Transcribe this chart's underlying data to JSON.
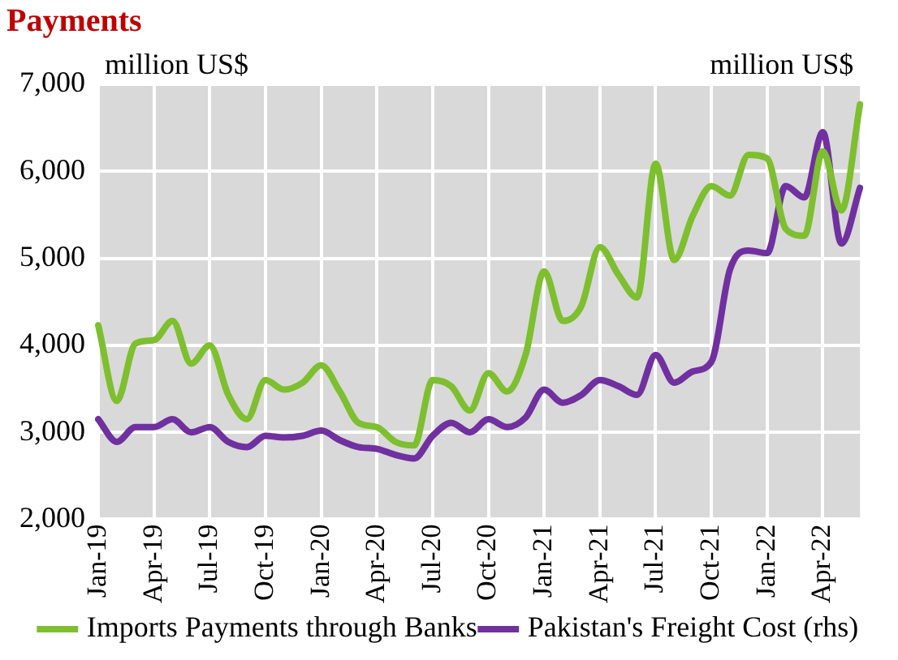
{
  "chart_data": {
    "type": "line",
    "title": "Payments",
    "ylabel": "million US$",
    "y2label": "million US$",
    "categories": [
      "Jan-19",
      null,
      null,
      "Apr-19",
      null,
      null,
      "Jul-19",
      null,
      null,
      "Oct-19",
      null,
      null,
      "Jan-20",
      null,
      null,
      "Apr-20",
      null,
      null,
      "Jul-20",
      null,
      null,
      "Oct-20",
      null,
      null,
      "Jan-21",
      null,
      null,
      "Apr-21",
      null,
      null,
      "Jul-21",
      null,
      null,
      "Oct-21",
      null,
      null,
      "Jan-22",
      null,
      null,
      "Apr-22",
      null,
      null
    ],
    "series": [
      {
        "name": "Imports Payments through Banks",
        "color": "#7dbf2e",
        "values": [
          4230,
          3360,
          4020,
          4060,
          4280,
          3790,
          4000,
          3430,
          3150,
          3600,
          3490,
          3570,
          3770,
          3470,
          3110,
          3060,
          2890,
          2850,
          3600,
          3530,
          3250,
          3680,
          3470,
          3890,
          4850,
          4280,
          4450,
          5130,
          4810,
          4550,
          6090,
          4980,
          5490,
          5830,
          5720,
          6190,
          6150,
          5340,
          5260,
          6230,
          5550,
          6770
        ]
      },
      {
        "name": "Pakistan's Freight Cost (rhs)",
        "color": "#7030a0",
        "values": [
          3150,
          2890,
          3060,
          3060,
          3150,
          3000,
          3060,
          2890,
          2830,
          2960,
          2940,
          2960,
          3020,
          2910,
          2830,
          2810,
          2740,
          2700,
          2960,
          3110,
          3000,
          3150,
          3060,
          3170,
          3490,
          3340,
          3430,
          3600,
          3530,
          3430,
          3890,
          3570,
          3700,
          3810,
          4870,
          5090,
          5060,
          5830,
          5700,
          6450,
          5170,
          5810
        ]
      }
    ],
    "ylim": [
      2000,
      7000
    ],
    "yticks": [
      {
        "value": 2000,
        "label": "2,000"
      },
      {
        "value": 3000,
        "label": "3,000"
      },
      {
        "value": 4000,
        "label": "4,000"
      },
      {
        "value": 5000,
        "label": "5,000"
      },
      {
        "value": 6000,
        "label": "6,000"
      },
      {
        "value": 7000,
        "label": "7,000"
      }
    ],
    "grid": true,
    "legend": "bottom",
    "marker": "none",
    "line_style": "solid"
  }
}
